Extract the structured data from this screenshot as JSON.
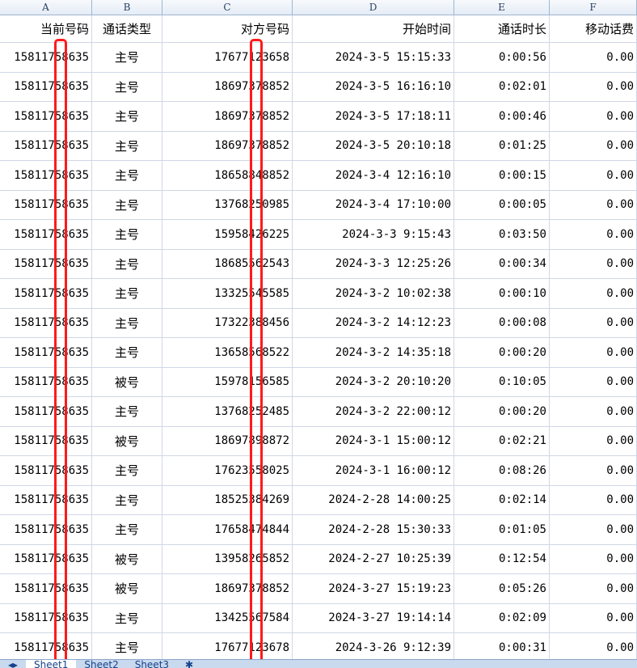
{
  "columns": [
    "A",
    "B",
    "C",
    "D",
    "E",
    "F"
  ],
  "headers": [
    "当前号码",
    "通话类型",
    "对方号码",
    "开始时间",
    "通话时长",
    "移动话费"
  ],
  "rows": [
    [
      "15811758635",
      "主号",
      "17677123658",
      "2024-3-5 15:15:33",
      "0:00:56",
      "0.00"
    ],
    [
      "15811758635",
      "主号",
      "18697378852",
      "2024-3-5 16:16:10",
      "0:02:01",
      "0.00"
    ],
    [
      "15811758635",
      "主号",
      "18697378852",
      "2024-3-5 17:18:11",
      "0:00:46",
      "0.00"
    ],
    [
      "15811758635",
      "主号",
      "18697378852",
      "2024-3-5 20:10:18",
      "0:01:25",
      "0.00"
    ],
    [
      "15811758635",
      "主号",
      "18658848852",
      "2024-3-4 12:16:10",
      "0:00:15",
      "0.00"
    ],
    [
      "15811758635",
      "主号",
      "13768250985",
      "2024-3-4 17:10:00",
      "0:00:05",
      "0.00"
    ],
    [
      "15811758635",
      "主号",
      "15958426225",
      "2024-3-3 9:15:43",
      "0:03:50",
      "0.00"
    ],
    [
      "15811758635",
      "主号",
      "18685562543",
      "2024-3-3 12:25:26",
      "0:00:34",
      "0.00"
    ],
    [
      "15811758635",
      "主号",
      "13325545585",
      "2024-3-2 10:02:38",
      "0:00:10",
      "0.00"
    ],
    [
      "15811758635",
      "主号",
      "17322388456",
      "2024-3-2 14:12:23",
      "0:00:08",
      "0.00"
    ],
    [
      "15811758635",
      "主号",
      "13658568522",
      "2024-3-2 14:35:18",
      "0:00:20",
      "0.00"
    ],
    [
      "15811758635",
      "被号",
      "15978156585",
      "2024-3-2 20:10:20",
      "0:10:05",
      "0.00"
    ],
    [
      "15811758635",
      "主号",
      "13768252485",
      "2024-3-2 22:00:12",
      "0:00:20",
      "0.00"
    ],
    [
      "15811758635",
      "被号",
      "18697898872",
      "2024-3-1 15:00:12",
      "0:02:21",
      "0.00"
    ],
    [
      "15811758635",
      "主号",
      "17623558025",
      "2024-3-1 16:00:12",
      "0:08:26",
      "0.00"
    ],
    [
      "15811758635",
      "主号",
      "18525384269",
      "2024-2-28 14:00:25",
      "0:02:14",
      "0.00"
    ],
    [
      "15811758635",
      "主号",
      "17658474844",
      "2024-2-28 15:30:33",
      "0:01:05",
      "0.00"
    ],
    [
      "15811758635",
      "被号",
      "13958265852",
      "2024-2-27 10:25:39",
      "0:12:54",
      "0.00"
    ],
    [
      "15811758635",
      "被号",
      "18697378852",
      "2024-3-27 15:19:23",
      "0:05:26",
      "0.00"
    ],
    [
      "15811758635",
      "主号",
      "13425567584",
      "2024-3-27 19:14:14",
      "0:02:09",
      "0.00"
    ],
    [
      "15811758635",
      "主号",
      "17677123678",
      "2024-3-26 9:12:39",
      "0:00:31",
      "0.00"
    ]
  ],
  "sheet_tabs": [
    "Sheet1",
    "Sheet2",
    "Sheet3"
  ],
  "redaction_color": "#ff1a1a"
}
